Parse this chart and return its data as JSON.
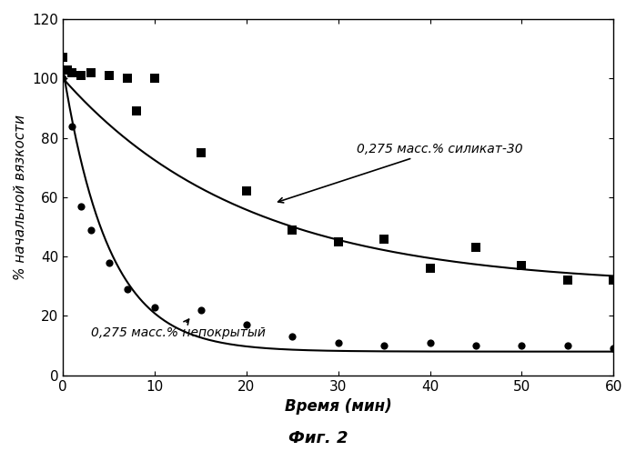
{
  "silicate_x": [
    0,
    0.5,
    1,
    2,
    3,
    5,
    7,
    8,
    10,
    15,
    20,
    25,
    30,
    35,
    40,
    45,
    50,
    55,
    60
  ],
  "silicate_y": [
    107,
    103,
    102,
    101,
    102,
    101,
    100,
    89,
    100,
    75,
    62,
    49,
    45,
    46,
    36,
    43,
    37,
    32,
    32
  ],
  "uncoated_x": [
    0,
    0.5,
    1,
    2,
    3,
    5,
    7,
    10,
    15,
    20,
    25,
    30,
    35,
    40,
    45,
    50,
    55,
    60
  ],
  "uncoated_y": [
    100,
    103,
    84,
    57,
    49,
    38,
    29,
    23,
    22,
    17,
    13,
    11,
    10,
    11,
    10,
    10,
    10,
    9
  ],
  "silicate_marker": "s",
  "uncoated_marker": "o",
  "line_color": "#000000",
  "marker_color": "#000000",
  "xlabel": "Время (мин)",
  "ylabel": "% начальной вязкости",
  "label_silicate": "0,275 масс.% силикат-30",
  "label_uncoated": "0,275 масс.% непокрытый",
  "caption": "Фиг. 2",
  "xlim": [
    0,
    60
  ],
  "ylim": [
    0,
    120
  ],
  "yticks": [
    0,
    20,
    40,
    60,
    80,
    100,
    120
  ],
  "xticks": [
    0,
    10,
    20,
    30,
    40,
    50,
    60
  ],
  "figsize": [
    6.99,
    4.96
  ],
  "dpi": 100
}
